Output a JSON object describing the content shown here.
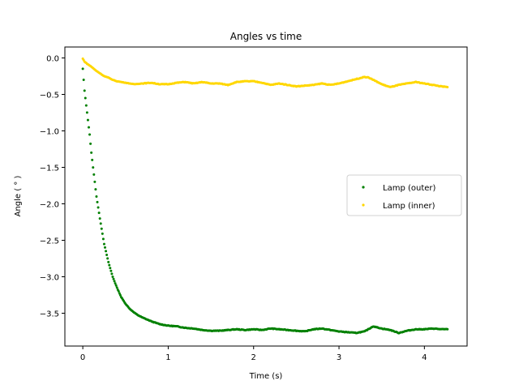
{
  "chart_data": {
    "type": "scatter",
    "title": "Angles vs time",
    "xlabel": "Time (s)",
    "ylabel": "Angle ( ° )",
    "xlim": [
      -0.21,
      4.5
    ],
    "ylim": [
      -3.95,
      0.15
    ],
    "xticks": [
      0,
      1,
      2,
      3,
      4
    ],
    "xtick_labels": [
      "0",
      "1",
      "2",
      "3",
      "4"
    ],
    "yticks": [
      0.0,
      -0.5,
      -1.0,
      -1.5,
      -2.0,
      -2.5,
      -3.0,
      -3.5
    ],
    "ytick_labels": [
      "0.0",
      "−0.5",
      "−1.0",
      "−1.5",
      "−2.0",
      "−2.5",
      "−3.0",
      "−3.5"
    ],
    "grid": false,
    "legend_position": "center-right",
    "series": [
      {
        "name": "Lamp (outer)",
        "color": "#008000",
        "x": [
          0.0,
          0.02,
          0.05,
          0.08,
          0.1,
          0.13,
          0.16,
          0.2,
          0.25,
          0.3,
          0.35,
          0.4,
          0.45,
          0.5,
          0.55,
          0.6,
          0.65,
          0.7,
          0.8,
          0.9,
          1.0,
          1.1,
          1.2,
          1.3,
          1.4,
          1.5,
          1.6,
          1.7,
          1.8,
          1.9,
          2.0,
          2.1,
          2.2,
          2.3,
          2.4,
          2.5,
          2.6,
          2.7,
          2.8,
          2.9,
          3.0,
          3.1,
          3.2,
          3.3,
          3.4,
          3.5,
          3.6,
          3.7,
          3.8,
          3.9,
          4.0,
          4.1,
          4.2,
          4.27
        ],
        "y": [
          -0.15,
          -0.45,
          -0.75,
          -1.05,
          -1.3,
          -1.6,
          -1.9,
          -2.2,
          -2.55,
          -2.8,
          -3.0,
          -3.15,
          -3.28,
          -3.37,
          -3.44,
          -3.49,
          -3.53,
          -3.56,
          -3.61,
          -3.65,
          -3.67,
          -3.68,
          -3.7,
          -3.71,
          -3.73,
          -3.74,
          -3.74,
          -3.73,
          -3.72,
          -3.73,
          -3.72,
          -3.73,
          -3.71,
          -3.72,
          -3.73,
          -3.74,
          -3.75,
          -3.72,
          -3.71,
          -3.73,
          -3.75,
          -3.76,
          -3.77,
          -3.75,
          -3.68,
          -3.71,
          -3.73,
          -3.77,
          -3.74,
          -3.72,
          -3.72,
          -3.71,
          -3.72,
          -3.72
        ]
      },
      {
        "name": "Lamp (inner)",
        "color": "#ffd700",
        "x": [
          0.0,
          0.02,
          0.05,
          0.1,
          0.15,
          0.2,
          0.25,
          0.3,
          0.35,
          0.4,
          0.5,
          0.6,
          0.7,
          0.8,
          0.9,
          1.0,
          1.1,
          1.2,
          1.3,
          1.4,
          1.5,
          1.6,
          1.7,
          1.8,
          1.9,
          2.0,
          2.1,
          2.2,
          2.3,
          2.4,
          2.5,
          2.6,
          2.7,
          2.8,
          2.9,
          3.0,
          3.1,
          3.2,
          3.3,
          3.35,
          3.4,
          3.5,
          3.6,
          3.7,
          3.8,
          3.9,
          4.0,
          4.1,
          4.2,
          4.27
        ],
        "y": [
          -0.01,
          -0.05,
          -0.08,
          -0.12,
          -0.17,
          -0.21,
          -0.25,
          -0.27,
          -0.3,
          -0.32,
          -0.34,
          -0.36,
          -0.35,
          -0.34,
          -0.36,
          -0.36,
          -0.34,
          -0.33,
          -0.35,
          -0.33,
          -0.35,
          -0.35,
          -0.37,
          -0.33,
          -0.32,
          -0.32,
          -0.34,
          -0.37,
          -0.35,
          -0.37,
          -0.39,
          -0.38,
          -0.37,
          -0.35,
          -0.37,
          -0.35,
          -0.32,
          -0.29,
          -0.26,
          -0.27,
          -0.3,
          -0.36,
          -0.4,
          -0.37,
          -0.35,
          -0.33,
          -0.35,
          -0.37,
          -0.39,
          -0.4
        ]
      }
    ]
  }
}
